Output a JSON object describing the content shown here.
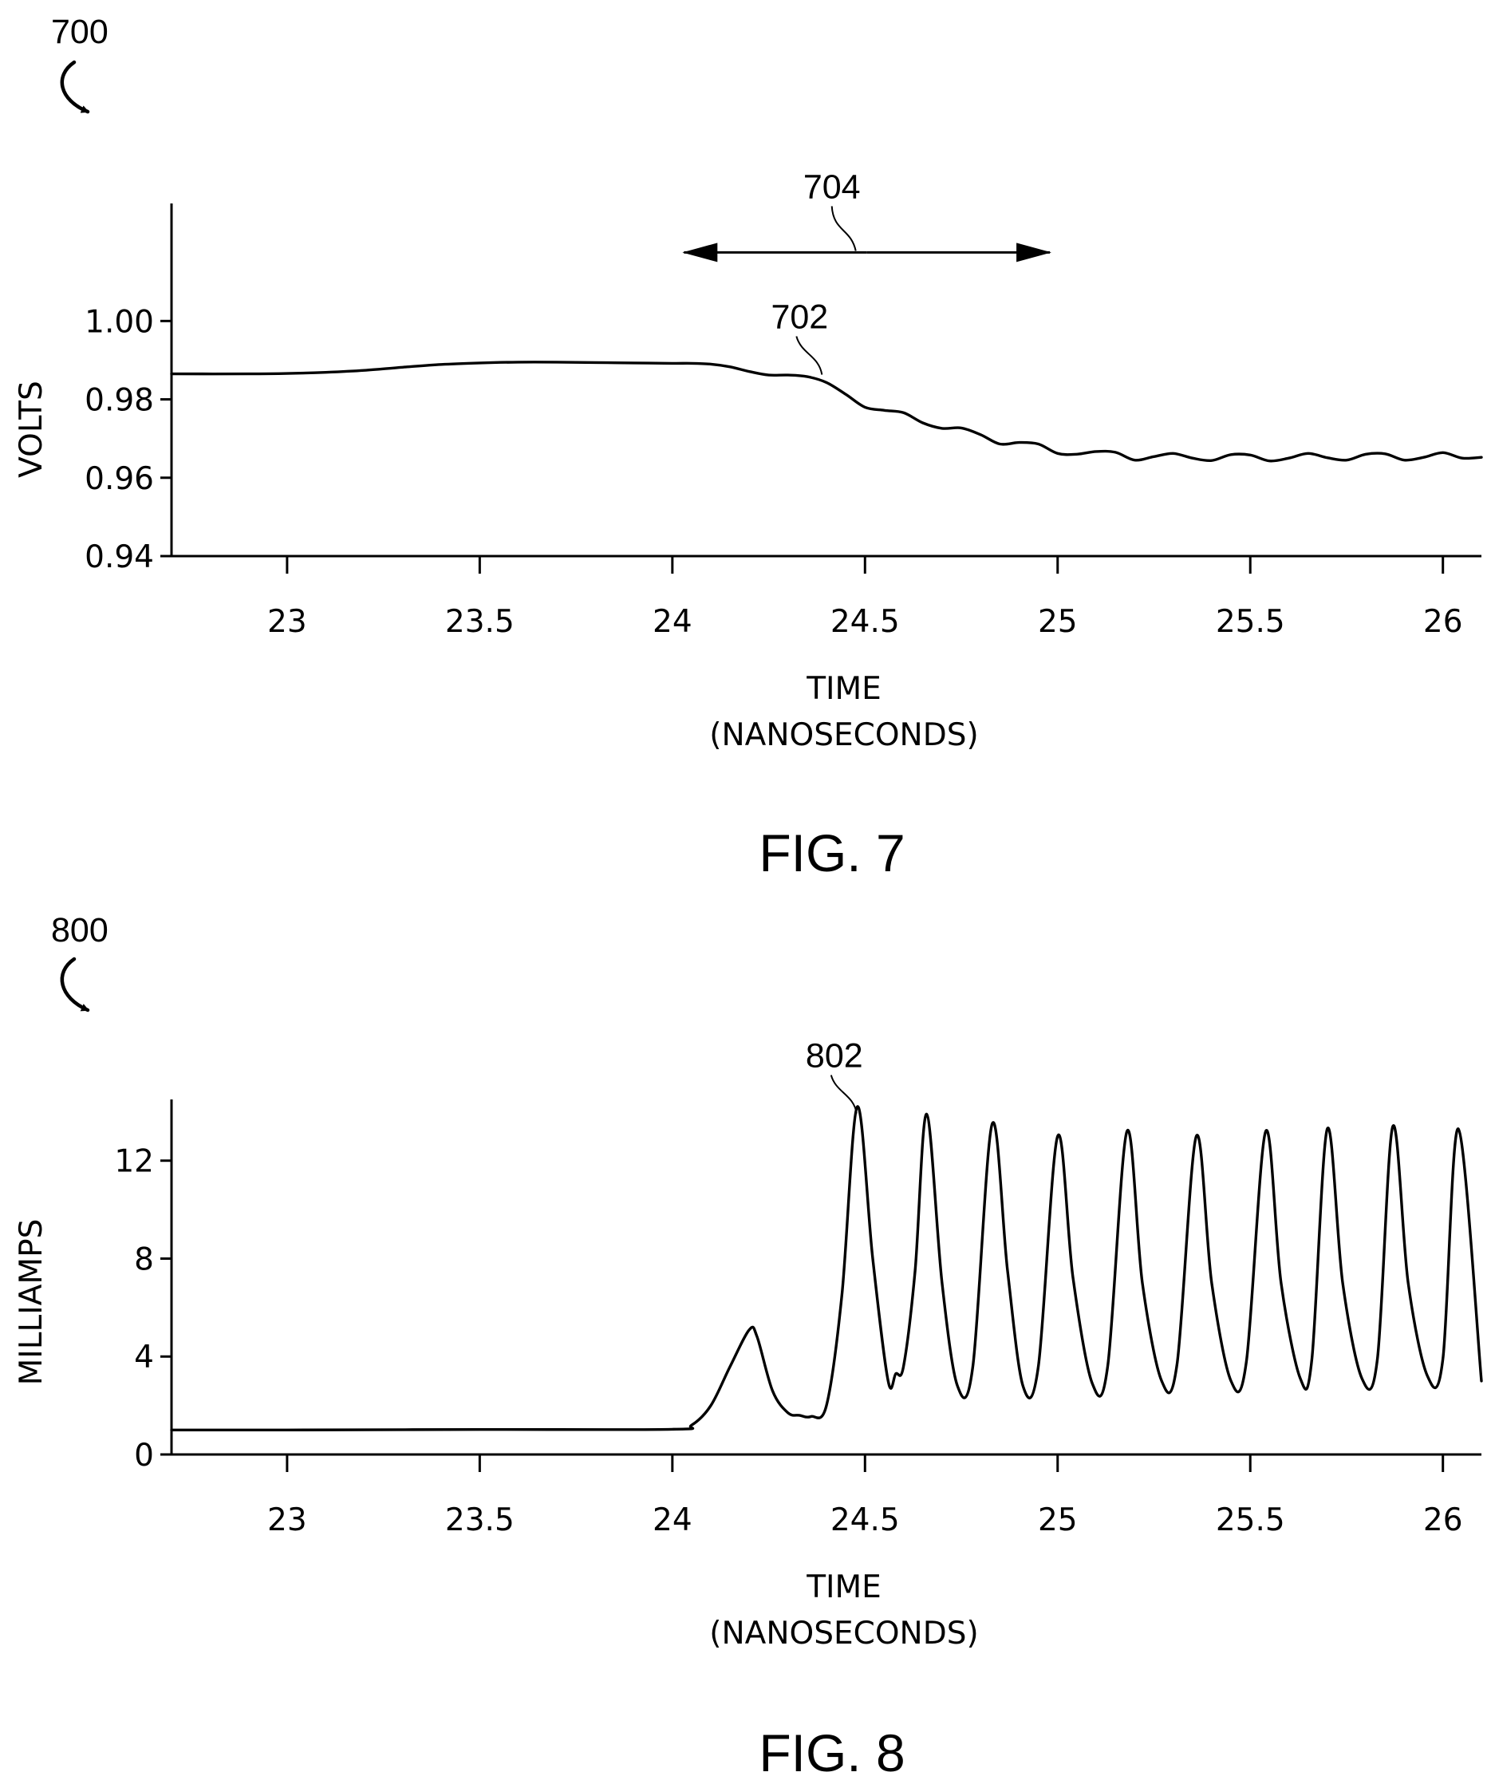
{
  "chart_data": [
    {
      "type": "line",
      "figure_ref": "700",
      "caption": "FIG. 7",
      "xlabel_line1": "TIME",
      "xlabel_line2": "(NANOSECONDS)",
      "ylabel": "VOLTS",
      "xlim": [
        22.7,
        26.1
      ],
      "ylim": [
        0.94,
        1.03
      ],
      "x_ticks": [
        23,
        23.5,
        24,
        24.5,
        25,
        25.5,
        26
      ],
      "x_tick_labels": [
        "23",
        "23.5",
        "24",
        "24.5",
        "25",
        "25.5",
        "26"
      ],
      "y_ticks": [
        0.94,
        0.96,
        0.98,
        1.0
      ],
      "y_tick_labels": [
        "0.94",
        "0.96",
        "0.98",
        "1.00"
      ],
      "grid": false,
      "annotations": [
        {
          "label": "702",
          "target_x": 24.38,
          "target_y": 0.9855
        },
        {
          "label": "704",
          "kind": "range",
          "x_start": 24.03,
          "x_end": 24.98,
          "target_y": 1.0175
        }
      ],
      "series": [
        {
          "label": "702",
          "x": [
            22.7,
            22.9,
            23.0,
            23.1,
            23.2,
            23.3,
            23.4,
            23.5,
            23.6,
            23.7,
            23.8,
            23.9,
            24.0,
            24.05,
            24.1,
            24.15,
            24.2,
            24.25,
            24.3,
            24.35,
            24.4,
            24.45,
            24.5,
            24.55,
            24.6,
            24.65,
            24.7,
            24.75,
            24.8,
            24.85,
            24.9,
            24.95,
            25.0,
            25.05,
            25.1,
            25.15,
            25.2,
            25.25,
            25.3,
            25.35,
            25.4,
            25.45,
            25.5,
            25.55,
            25.6,
            25.65,
            25.7,
            25.75,
            25.8,
            25.85,
            25.9,
            25.95,
            26.0,
            26.05,
            26.1
          ],
          "y": [
            0.9865,
            0.9865,
            0.9866,
            0.9869,
            0.9874,
            0.9882,
            0.9889,
            0.9893,
            0.9895,
            0.9895,
            0.9894,
            0.9893,
            0.9892,
            0.9892,
            0.989,
            0.9883,
            0.9871,
            0.9862,
            0.9862,
            0.9858,
            0.9843,
            0.9813,
            0.978,
            0.9772,
            0.9766,
            0.974,
            0.9726,
            0.9727,
            0.971,
            0.9686,
            0.969,
            0.9686,
            0.9662,
            0.966,
            0.9667,
            0.9665,
            0.9645,
            0.9654,
            0.9662,
            0.965,
            0.9644,
            0.9659,
            0.9658,
            0.9643,
            0.965,
            0.9662,
            0.9651,
            0.9645,
            0.966,
            0.9661,
            0.9645,
            0.9652,
            0.9664,
            0.965,
            0.9652
          ]
        }
      ]
    },
    {
      "type": "line",
      "figure_ref": "800",
      "caption": "FIG. 8",
      "xlabel_line1": "TIME",
      "xlabel_line2": "(NANOSECONDS)",
      "ylabel": "MILLIAMPS",
      "xlim": [
        22.7,
        26.1
      ],
      "ylim": [
        0,
        14.5
      ],
      "x_ticks": [
        23,
        23.5,
        24,
        24.5,
        25,
        25.5,
        26
      ],
      "x_tick_labels": [
        "23",
        "23.5",
        "24",
        "24.5",
        "25",
        "25.5",
        "26"
      ],
      "y_ticks": [
        0,
        4,
        8,
        12
      ],
      "y_tick_labels": [
        "0",
        "4",
        "8",
        "12"
      ],
      "grid": false,
      "annotations": [
        {
          "label": "802",
          "target_x": 24.47,
          "target_y": 13.8
        }
      ],
      "series": [
        {
          "label": "802",
          "x": [
            22.7,
            23.0,
            23.5,
            24.0,
            24.05,
            24.1,
            24.15,
            24.2,
            24.22,
            24.26,
            24.3,
            24.33,
            24.36,
            24.4,
            24.44,
            24.48,
            24.52,
            24.56,
            24.58,
            24.6,
            24.63,
            24.66,
            24.7,
            24.74,
            24.78,
            24.83,
            24.87,
            24.91,
            24.95,
            25.0,
            25.04,
            25.09,
            25.13,
            25.18,
            25.22,
            25.27,
            25.31,
            25.36,
            25.4,
            25.45,
            25.49,
            25.54,
            25.58,
            25.63,
            25.66,
            25.7,
            25.74,
            25.79,
            25.83,
            25.87,
            25.91,
            25.96,
            26.0,
            26.04,
            26.1
          ],
          "y": [
            1.0,
            1.0,
            1.02,
            1.03,
            1.2,
            2.0,
            3.6,
            5.1,
            4.8,
            2.6,
            1.7,
            1.6,
            1.55,
            2.0,
            6.5,
            14.2,
            8.0,
            3.0,
            3.3,
            3.6,
            7.5,
            13.9,
            7.0,
            2.8,
            3.6,
            13.5,
            7.5,
            2.8,
            3.6,
            13.0,
            7.2,
            2.9,
            3.6,
            13.2,
            7.0,
            3.0,
            3.7,
            13.0,
            7.0,
            3.0,
            3.8,
            13.2,
            7.0,
            3.1,
            3.9,
            13.3,
            7.0,
            3.1,
            3.9,
            13.4,
            7.0,
            3.2,
            3.9,
            13.3,
            3.0
          ]
        }
      ]
    }
  ]
}
